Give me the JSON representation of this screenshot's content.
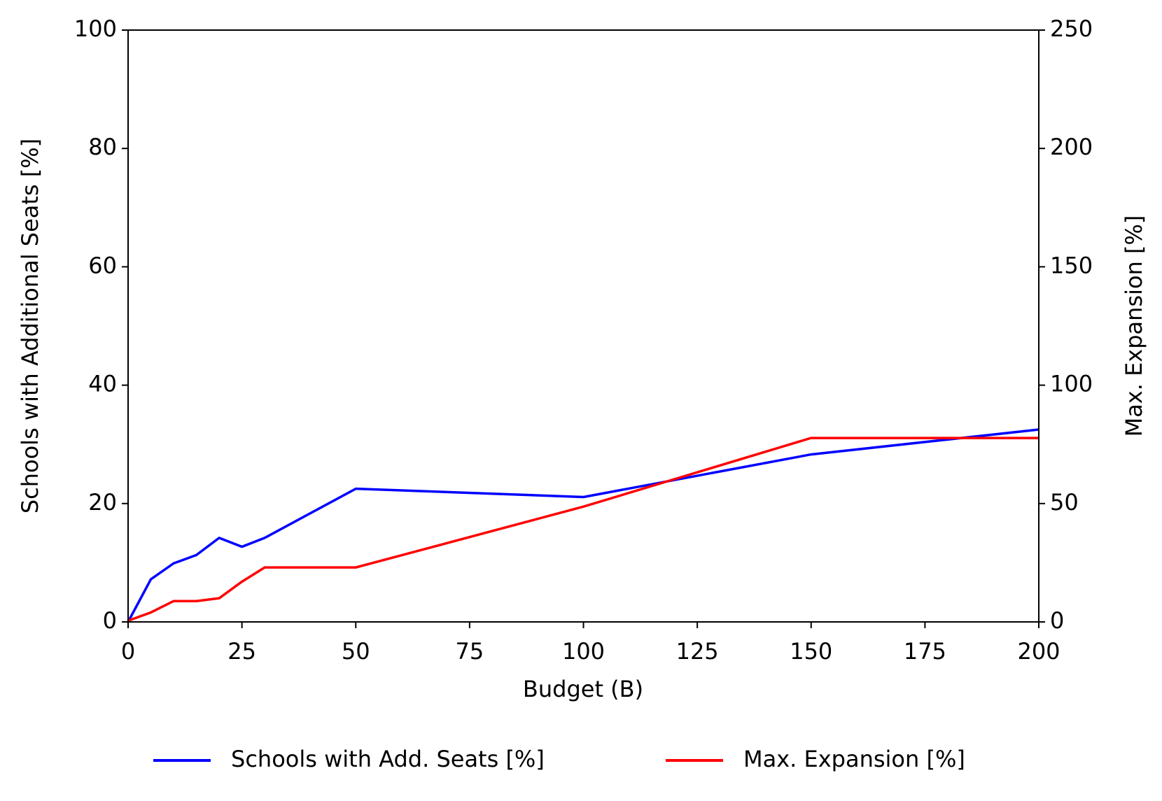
{
  "chart_data": {
    "type": "line",
    "x_label": "Budget (B)",
    "y_label": "Schools with Additional Seats [%]",
    "y2_label": "Max. Expansion [%]",
    "x": [
      0,
      5,
      10,
      15,
      20,
      25,
      30,
      50,
      100,
      150,
      200
    ],
    "series": [
      {
        "name": "Schools with Add. Seats [%]",
        "color": "#0000ff",
        "values": [
          0,
          7.2,
          9.9,
          11.3,
          14.2,
          12.7,
          14.2,
          22.5,
          21.1,
          28.3,
          32.5
        ]
      },
      {
        "name": "Max. Expansion [%]",
        "color": "#ff0000",
        "axis": "y2",
        "values": [
          0.5,
          4,
          8.8,
          8.8,
          10,
          17,
          23,
          23,
          48.7,
          77.7,
          77.7
        ]
      }
    ],
    "xlim": [
      0,
      200
    ],
    "xticks": [
      0,
      25,
      50,
      75,
      100,
      125,
      150,
      175,
      200
    ],
    "ylim": [
      0,
      100
    ],
    "yticks": [
      0,
      20,
      40,
      60,
      80,
      100
    ],
    "y2lim": [
      0,
      250
    ],
    "y2ticks": [
      0,
      50,
      100,
      150,
      200,
      250
    ],
    "legend": "bottom"
  }
}
